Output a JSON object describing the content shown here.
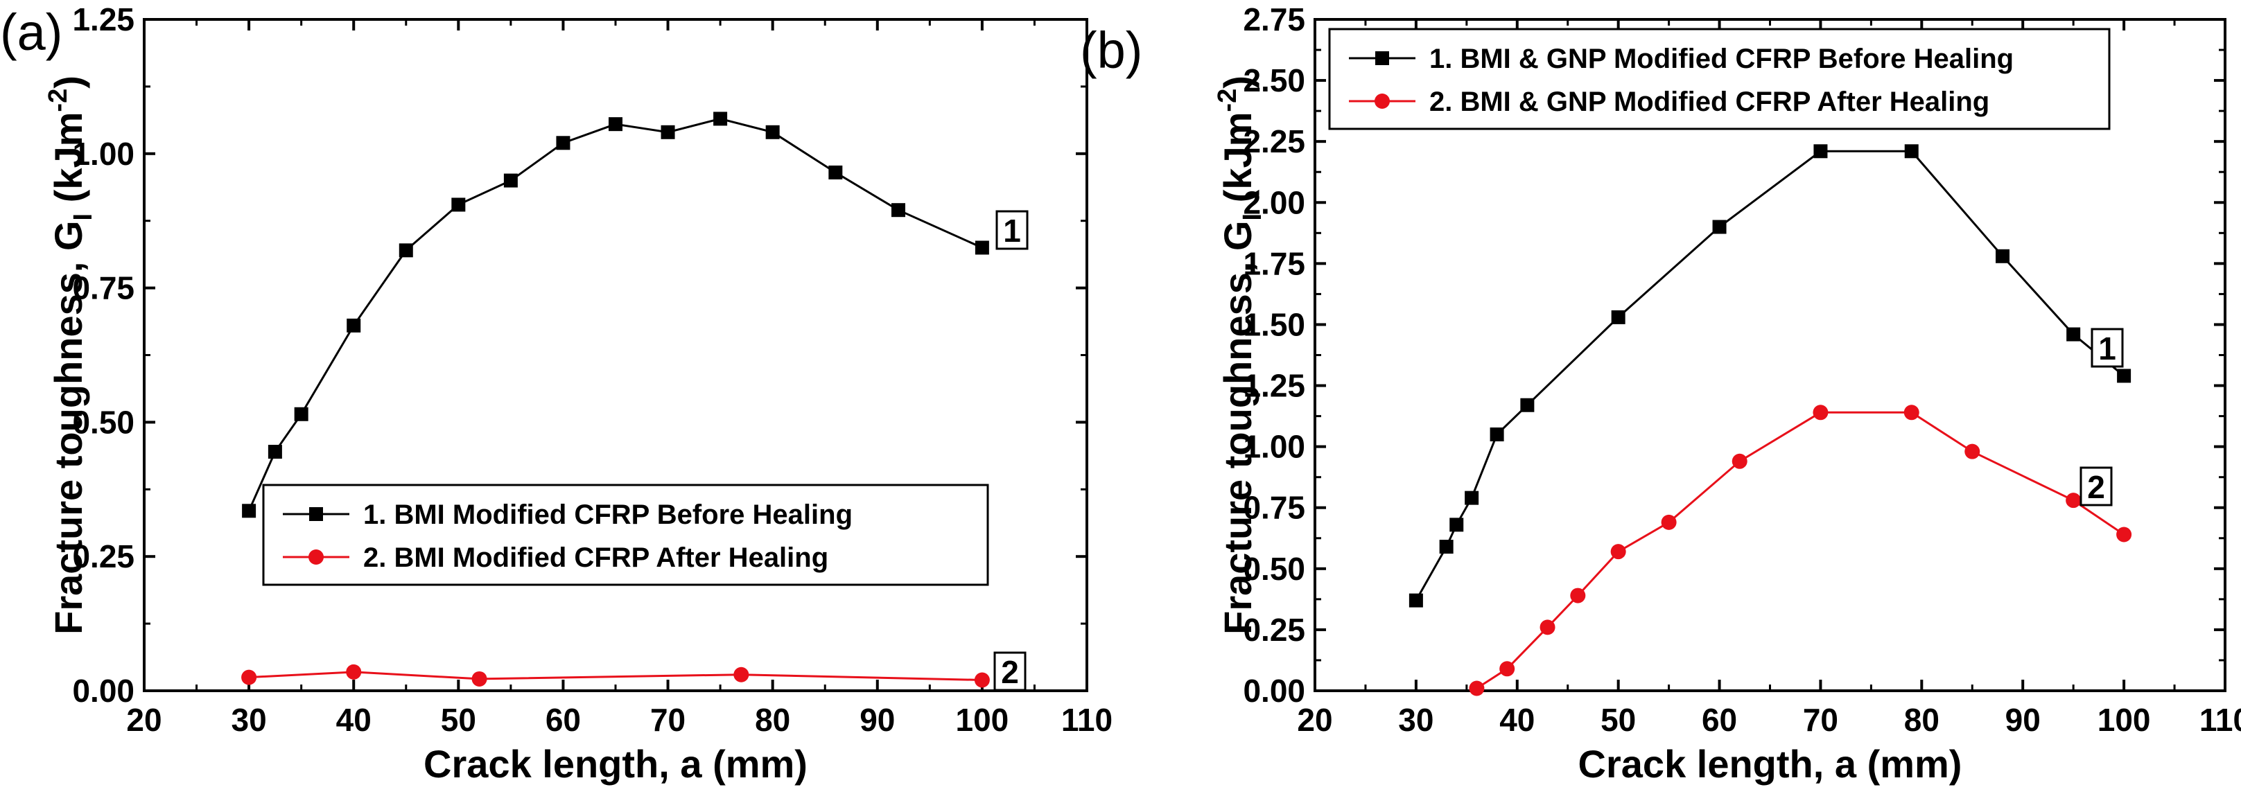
{
  "chart_data": [
    {
      "type": "line",
      "panel_label": "(a)",
      "xlabel": "Crack length, a (mm)",
      "ylabel_main": "Fracture toughness, G",
      "ylabel_sub": "I",
      "ylabel_unit_open": " (kJm",
      "ylabel_unit_sup": "-2",
      "ylabel_unit_close": ")",
      "xlim": [
        20,
        110
      ],
      "ylim": [
        0,
        1.25
      ],
      "xticks": [
        "20",
        "30",
        "40",
        "50",
        "60",
        "70",
        "80",
        "90",
        "100",
        "110"
      ],
      "yticks": [
        "0.00",
        "0.25",
        "0.50",
        "0.75",
        "1.00",
        "1.25"
      ],
      "legend_position": "lower-right",
      "series": [
        {
          "name": "1. BMI Modified CFRP Before Healing",
          "marker": "square",
          "color": "#000000",
          "annotation": "1",
          "x": [
            30,
            32.5,
            35,
            40,
            45,
            50,
            55,
            60,
            65,
            70,
            75,
            80,
            86,
            92,
            100
          ],
          "y": [
            0.335,
            0.445,
            0.515,
            0.68,
            0.82,
            0.905,
            0.95,
            1.02,
            1.055,
            1.04,
            1.065,
            1.04,
            0.965,
            0.895,
            0.825
          ]
        },
        {
          "name": "2. BMI Modified CFRP After Healing",
          "marker": "circle",
          "color": "#e8101a",
          "annotation": "2",
          "x": [
            30,
            40,
            52,
            77,
            100
          ],
          "y": [
            0.025,
            0.035,
            0.022,
            0.03,
            0.02
          ]
        }
      ]
    },
    {
      "type": "line",
      "panel_label": "(b)",
      "xlabel": "Crack length, a (mm)",
      "ylabel_main": "Fracture toughness, G",
      "ylabel_sub": "I",
      "ylabel_unit_open": " (kJm",
      "ylabel_unit_sup": "-2",
      "ylabel_unit_close": ")",
      "xlim": [
        20,
        110
      ],
      "ylim": [
        0,
        2.75
      ],
      "xticks": [
        "20",
        "30",
        "40",
        "50",
        "60",
        "70",
        "80",
        "90",
        "100",
        "110"
      ],
      "yticks": [
        "0.00",
        "0.25",
        "0.50",
        "0.75",
        "1.00",
        "1.25",
        "1.50",
        "1.75",
        "2.00",
        "2.25",
        "2.50",
        "2.75"
      ],
      "legend_position": "top-left",
      "series": [
        {
          "name": "1. BMI & GNP Modified CFRP Before Healing",
          "marker": "square",
          "color": "#000000",
          "annotation": "1",
          "x": [
            30,
            33,
            34,
            35.5,
            38,
            41,
            50,
            60,
            70,
            79,
            88,
            95,
            100
          ],
          "y": [
            0.37,
            0.59,
            0.68,
            0.79,
            1.05,
            1.17,
            1.53,
            1.9,
            2.21,
            2.21,
            1.78,
            1.46,
            1.29
          ]
        },
        {
          "name": "2. BMI & GNP Modified CFRP After Healing",
          "marker": "circle",
          "color": "#e8101a",
          "annotation": "2",
          "x": [
            36,
            39,
            43,
            46,
            50,
            55,
            62,
            70,
            79,
            85,
            95,
            100
          ],
          "y": [
            0.01,
            0.09,
            0.26,
            0.39,
            0.57,
            0.69,
            0.94,
            1.14,
            1.14,
            0.98,
            0.78,
            0.64
          ]
        }
      ]
    }
  ]
}
